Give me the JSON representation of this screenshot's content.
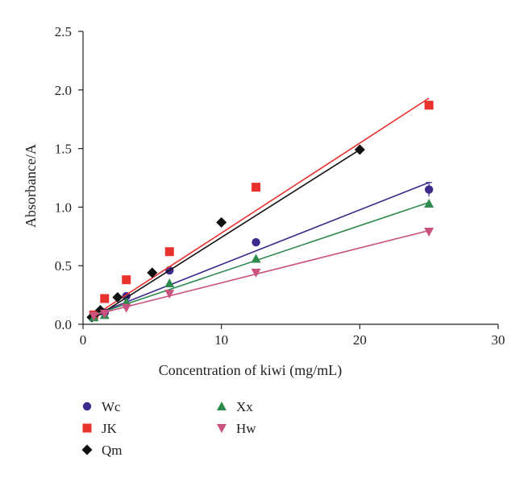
{
  "chart_data": {
    "type": "scatter",
    "title": "",
    "xlabel": "Concentration of kiwi (mg/mL)",
    "ylabel": "Absorbance/A",
    "xlim": [
      0,
      30
    ],
    "ylim": [
      0,
      2.5
    ],
    "xticks": [
      "0",
      "10",
      "20",
      "30"
    ],
    "yticks": [
      "0.0",
      "0.5",
      "1.0",
      "1.5",
      "2.0",
      "2.5"
    ],
    "grid": false,
    "legend_position": "bottom-left",
    "series": [
      {
        "name": "Wc",
        "color": "#3d2a8c",
        "marker": "circle",
        "x": [
          0.78,
          1.56,
          3.13,
          6.25,
          12.5,
          25
        ],
        "y": [
          0.07,
          0.1,
          0.24,
          0.46,
          0.7,
          1.15
        ],
        "fit": [
          [
            0.78,
            0.08
          ],
          [
            25,
            1.21
          ]
        ]
      },
      {
        "name": "JK",
        "color": "#e8322e",
        "marker": "square",
        "x": [
          0.78,
          1.56,
          3.13,
          6.25,
          12.5,
          25
        ],
        "y": [
          0.08,
          0.22,
          0.38,
          0.62,
          1.17,
          1.87
        ],
        "fit": [
          [
            0.5,
            0.05
          ],
          [
            25,
            1.93
          ]
        ]
      },
      {
        "name": "Qm",
        "color": "#111111",
        "marker": "diamond",
        "x": [
          0.63,
          1.25,
          2.5,
          5,
          10,
          20
        ],
        "y": [
          0.06,
          0.12,
          0.23,
          0.44,
          0.87,
          1.49
        ],
        "fit": [
          [
            0.63,
            0.04
          ],
          [
            20,
            1.49
          ]
        ]
      },
      {
        "name": "Xx",
        "color": "#2e8b4e",
        "marker": "triangle-up",
        "x": [
          0.78,
          1.56,
          3.13,
          6.25,
          12.5,
          25
        ],
        "y": [
          0.06,
          0.08,
          0.19,
          0.35,
          0.56,
          1.03
        ],
        "fit": [
          [
            0.78,
            0.08
          ],
          [
            25,
            1.04
          ]
        ]
      },
      {
        "name": "Hw",
        "color": "#c9527f",
        "marker": "triangle-down",
        "x": [
          0.78,
          1.56,
          3.13,
          6.25,
          12.5,
          25
        ],
        "y": [
          0.07,
          0.09,
          0.14,
          0.26,
          0.44,
          0.79
        ],
        "fit": [
          [
            0.78,
            0.08
          ],
          [
            25,
            0.8
          ]
        ]
      }
    ]
  }
}
